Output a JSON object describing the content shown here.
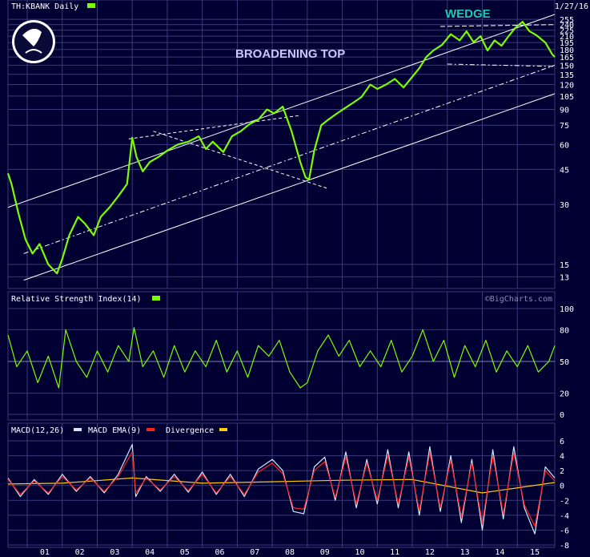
{
  "header": {
    "symbol_label": "TH:KBANK Daily",
    "date_label": "1/27/16"
  },
  "watermark": "©BigCharts.com",
  "colors": {
    "background": "#000033",
    "price": "#7CFC00",
    "rsi": "#7CFC00",
    "macd": "#cfe8ff",
    "macd_ema": "#ff2020",
    "divergence": "#ffcc00",
    "grid": "#3a3a7a",
    "trendline": "#ffffff"
  },
  "chart_data": [
    {
      "type": "line",
      "title": "TH:KBANK Daily",
      "scale": "log",
      "ylim": [
        12,
        270
      ],
      "y_ticks": [
        13,
        15,
        30,
        45,
        60,
        75,
        90,
        105,
        120,
        135,
        150,
        165,
        180,
        195,
        210,
        225,
        240,
        255
      ],
      "x_ticks": [
        "01",
        "02",
        "03",
        "04",
        "05",
        "06",
        "07",
        "08",
        "09",
        "10",
        "11",
        "12",
        "13",
        "14",
        "15"
      ],
      "x_range": [
        2000.45,
        2016.07
      ],
      "annotations": [
        "WEDGE",
        "BROADENING TOP"
      ],
      "series": [
        {
          "name": "TH:KBANK Daily",
          "x": [
            2000.45,
            2000.55,
            2000.75,
            2000.95,
            2001.15,
            2001.35,
            2001.6,
            2001.85,
            2002.0,
            2002.2,
            2002.45,
            2002.65,
            2002.9,
            2003.1,
            2003.35,
            2003.6,
            2003.85,
            2004.0,
            2004.12,
            2004.3,
            2004.5,
            2004.75,
            2005.0,
            2005.3,
            2005.6,
            2005.9,
            2006.1,
            2006.3,
            2006.6,
            2006.85,
            2007.1,
            2007.35,
            2007.6,
            2007.85,
            2008.05,
            2008.3,
            2008.55,
            2008.8,
            2008.95,
            2009.05,
            2009.2,
            2009.4,
            2009.6,
            2009.85,
            2010.1,
            2010.3,
            2010.55,
            2010.8,
            2011.0,
            2011.25,
            2011.5,
            2011.75,
            2011.95,
            2012.2,
            2012.4,
            2012.6,
            2012.85,
            2013.1,
            2013.35,
            2013.55,
            2013.75,
            2013.95,
            2014.15,
            2014.35,
            2014.55,
            2014.75,
            2014.95,
            2015.15,
            2015.35,
            2015.55,
            2015.8,
            2016.0,
            2016.07
          ],
          "y": [
            43,
            38,
            27,
            20,
            17,
            19,
            15,
            13.5,
            16,
            21,
            26,
            24,
            21,
            26,
            29,
            33,
            38,
            65,
            52,
            44,
            49,
            52,
            56,
            60,
            62,
            66,
            57,
            62,
            55,
            66,
            70,
            76,
            80,
            90,
            86,
            93,
            70,
            49,
            41,
            40,
            56,
            75,
            80,
            86,
            92,
            97,
            104,
            120,
            114,
            120,
            128,
            116,
            128,
            145,
            165,
            178,
            190,
            215,
            200,
            222,
            196,
            210,
            178,
            200,
            188,
            210,
            232,
            248,
            222,
            212,
            195,
            170,
            165
          ]
        }
      ]
    },
    {
      "type": "line",
      "title": "Relative Strength Index(14)",
      "ylim": [
        0,
        100
      ],
      "y_ticks": [
        0,
        20,
        50,
        80,
        100
      ],
      "reference_line": 50,
      "series": [
        {
          "name": "Relative Strength Index(14)",
          "x": [
            2000.45,
            2000.7,
            2001.0,
            2001.3,
            2001.6,
            2001.9,
            2002.1,
            2002.4,
            2002.7,
            2003.0,
            2003.3,
            2003.6,
            2003.9,
            2004.05,
            2004.3,
            2004.6,
            2004.9,
            2005.2,
            2005.5,
            2005.8,
            2006.1,
            2006.4,
            2006.7,
            2007.0,
            2007.3,
            2007.6,
            2007.9,
            2008.2,
            2008.5,
            2008.8,
            2009.0,
            2009.3,
            2009.6,
            2009.9,
            2010.2,
            2010.5,
            2010.8,
            2011.1,
            2011.4,
            2011.7,
            2012.0,
            2012.3,
            2012.6,
            2012.9,
            2013.2,
            2013.5,
            2013.8,
            2014.1,
            2014.4,
            2014.7,
            2015.0,
            2015.3,
            2015.6,
            2015.9,
            2016.07
          ],
          "y": [
            75,
            45,
            60,
            30,
            55,
            25,
            80,
            50,
            35,
            60,
            40,
            65,
            50,
            82,
            45,
            60,
            35,
            65,
            40,
            60,
            45,
            70,
            40,
            60,
            35,
            65,
            55,
            70,
            40,
            25,
            30,
            60,
            75,
            55,
            70,
            45,
            60,
            45,
            70,
            40,
            55,
            80,
            50,
            70,
            35,
            65,
            45,
            70,
            40,
            60,
            45,
            65,
            40,
            50,
            65
          ]
        }
      ]
    },
    {
      "type": "line",
      "title": "MACD(12,26)",
      "ylim": [
        -8,
        6
      ],
      "y_ticks": [
        6,
        4,
        2,
        0,
        -2,
        -4,
        -6,
        -8
      ],
      "legend": [
        "MACD(12,26)",
        "MACD EMA(9)",
        "Divergence"
      ],
      "series": [
        {
          "name": "MACD(12,26)",
          "x": [
            2000.45,
            2000.8,
            2001.2,
            2001.6,
            2002.0,
            2002.4,
            2002.8,
            2003.2,
            2003.6,
            2004.0,
            2004.1,
            2004.4,
            2004.8,
            2005.2,
            2005.6,
            2006.0,
            2006.4,
            2006.8,
            2007.2,
            2007.6,
            2008.0,
            2008.3,
            2008.6,
            2008.9,
            2009.2,
            2009.5,
            2009.8,
            2010.1,
            2010.4,
            2010.7,
            2011.0,
            2011.3,
            2011.6,
            2011.9,
            2012.2,
            2012.5,
            2012.8,
            2013.1,
            2013.4,
            2013.7,
            2014.0,
            2014.3,
            2014.6,
            2014.9,
            2015.2,
            2015.5,
            2015.8,
            2016.07
          ],
          "y": [
            1,
            -1.5,
            0.8,
            -1.2,
            1.5,
            -0.8,
            1.2,
            -1.0,
            1.5,
            5.5,
            -1.5,
            1.2,
            -0.8,
            1.5,
            -0.9,
            1.8,
            -1.2,
            1.5,
            -1.5,
            2.2,
            3.5,
            2.0,
            -3.5,
            -3.8,
            2.5,
            3.8,
            -2.0,
            4.5,
            -3.0,
            3.5,
            -2.5,
            4.8,
            -3.0,
            4.5,
            -4.0,
            5.2,
            -3.5,
            4.0,
            -5.0,
            3.5,
            -6.0,
            4.8,
            -4.5,
            5.2,
            -3.0,
            -6.5,
            2.5,
            1.0
          ]
        },
        {
          "name": "MACD EMA(9)",
          "x": [
            2000.45,
            2000.8,
            2001.2,
            2001.6,
            2002.0,
            2002.4,
            2002.8,
            2003.2,
            2003.6,
            2004.0,
            2004.1,
            2004.4,
            2004.8,
            2005.2,
            2005.6,
            2006.0,
            2006.4,
            2006.8,
            2007.2,
            2007.6,
            2008.0,
            2008.3,
            2008.6,
            2008.9,
            2009.2,
            2009.5,
            2009.8,
            2010.1,
            2010.4,
            2010.7,
            2011.0,
            2011.3,
            2011.6,
            2011.9,
            2012.2,
            2012.5,
            2012.8,
            2013.1,
            2013.4,
            2013.7,
            2014.0,
            2014.3,
            2014.6,
            2014.9,
            2015.2,
            2015.5,
            2015.8,
            2016.07
          ],
          "y": [
            0.8,
            -1.2,
            0.6,
            -1.0,
            1.2,
            -0.6,
            1.0,
            -0.8,
            1.2,
            4.5,
            -1.0,
            1.0,
            -0.6,
            1.2,
            -0.7,
            1.5,
            -1.0,
            1.2,
            -1.2,
            1.8,
            3.0,
            1.6,
            -3.0,
            -3.2,
            2.0,
            3.2,
            -1.6,
            3.8,
            -2.5,
            3.0,
            -2.0,
            4.0,
            -2.5,
            3.8,
            -3.4,
            4.4,
            -3.0,
            3.4,
            -4.2,
            3.0,
            -5.0,
            4.0,
            -3.8,
            4.4,
            -2.6,
            -5.5,
            2.0,
            0.6
          ]
        },
        {
          "name": "Divergence",
          "x": [
            2000.45,
            2002.0,
            2004.0,
            2006.0,
            2008.0,
            2010.0,
            2012.0,
            2014.0,
            2016.07
          ],
          "y": [
            0.2,
            0.3,
            1.0,
            0.3,
            0.5,
            0.7,
            0.8,
            -1.0,
            0.4
          ]
        }
      ],
      "x_ticks": [
        "01",
        "02",
        "03",
        "04",
        "05",
        "06",
        "07",
        "08",
        "09",
        "10",
        "11",
        "12",
        "13",
        "14",
        "15"
      ]
    }
  ]
}
